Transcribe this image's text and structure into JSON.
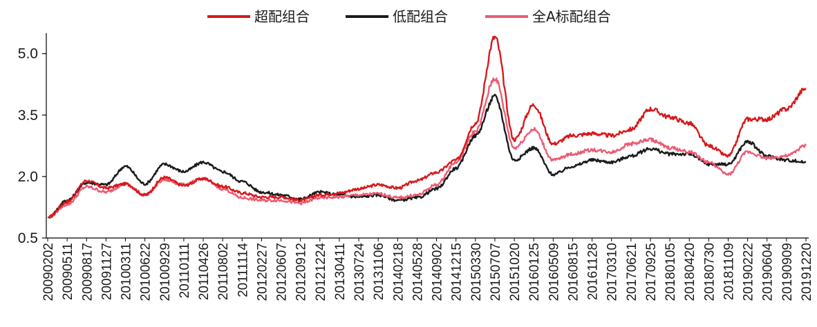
{
  "chart_data": {
    "type": "line",
    "title": "",
    "xlabel": "",
    "ylabel": "",
    "ylim": [
      0.5,
      5.5
    ],
    "y_ticks": [
      "0.5",
      "2.0",
      "3.5",
      "5.0"
    ],
    "legend_placement": "top-center",
    "grid": false,
    "x_tick_labels": [
      "20090202",
      "20090511",
      "20090817",
      "20091127",
      "20100311",
      "20100622",
      "20100929",
      "20110111",
      "20110426",
      "20110802",
      "20111114",
      "20120227",
      "20120607",
      "20120912",
      "20121224",
      "20130411",
      "20130724",
      "20131106",
      "20140218",
      "20140528",
      "20140902",
      "20141215",
      "20150330",
      "20150707",
      "20151020",
      "20160125",
      "20160509",
      "20160815",
      "20161128",
      "20170310",
      "20170621",
      "20170925",
      "20180105",
      "20180420",
      "20180730",
      "20181109",
      "20190222",
      "20190604",
      "20190909",
      "20191220"
    ],
    "series": [
      {
        "name": "超配组合",
        "color": "#d7191c",
        "values": [
          1.0,
          1.38,
          1.9,
          1.72,
          1.82,
          1.55,
          1.98,
          1.78,
          1.95,
          1.76,
          1.6,
          1.5,
          1.5,
          1.42,
          1.55,
          1.6,
          1.7,
          1.8,
          1.72,
          1.9,
          2.1,
          2.4,
          3.3,
          5.4,
          2.9,
          3.75,
          2.8,
          3.0,
          3.05,
          3.0,
          3.15,
          3.65,
          3.45,
          3.3,
          2.75,
          2.5,
          3.4,
          3.4,
          3.65,
          4.15
        ]
      },
      {
        "name": "低配组合",
        "color": "#1a1a1a",
        "values": [
          1.0,
          1.42,
          1.85,
          1.8,
          2.25,
          1.82,
          2.3,
          2.12,
          2.35,
          2.12,
          1.88,
          1.62,
          1.55,
          1.45,
          1.62,
          1.55,
          1.5,
          1.55,
          1.42,
          1.48,
          1.7,
          2.2,
          3.0,
          3.95,
          2.4,
          2.7,
          2.05,
          2.25,
          2.4,
          2.35,
          2.5,
          2.68,
          2.55,
          2.55,
          2.3,
          2.3,
          2.85,
          2.5,
          2.4,
          2.35
        ]
      },
      {
        "name": "全A标配组合",
        "color": "#ec5b74",
        "values": [
          1.0,
          1.32,
          1.75,
          1.62,
          1.82,
          1.55,
          1.92,
          1.8,
          1.95,
          1.7,
          1.48,
          1.42,
          1.42,
          1.35,
          1.48,
          1.5,
          1.55,
          1.58,
          1.48,
          1.55,
          1.8,
          2.35,
          3.1,
          4.4,
          2.7,
          3.15,
          2.4,
          2.55,
          2.65,
          2.6,
          2.8,
          2.9,
          2.7,
          2.6,
          2.35,
          2.05,
          2.6,
          2.45,
          2.5,
          2.75
        ]
      }
    ]
  }
}
